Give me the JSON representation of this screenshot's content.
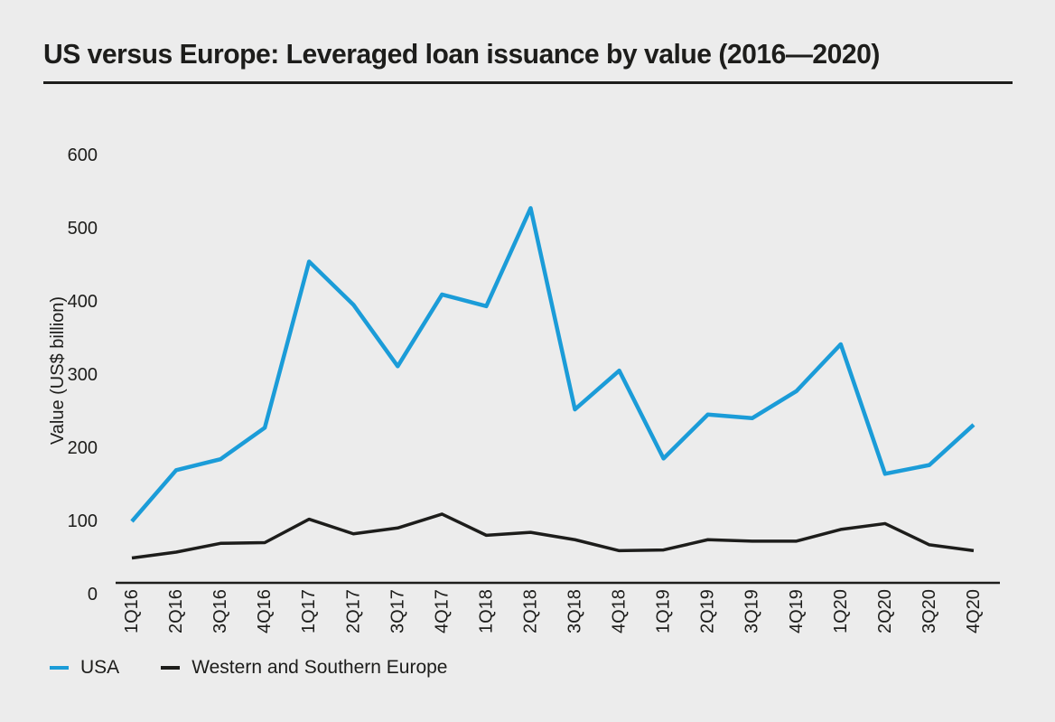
{
  "title": "US versus Europe: Leveraged loan issuance by value (2016—2020)",
  "colors": {
    "background": "#ececec",
    "ink": "#1d1d1b",
    "accent_blue": "#1b9cd8"
  },
  "chart_data": {
    "type": "line",
    "title": "US versus Europe: Leveraged loan issuance by value (2016—2020)",
    "xlabel": "",
    "ylabel": "Value (US$ billion)",
    "ylim": [
      0,
      600
    ],
    "yticks": [
      0,
      100,
      200,
      300,
      400,
      500,
      600
    ],
    "grid": false,
    "legend_position": "bottom-left",
    "categories": [
      "1Q16",
      "2Q16",
      "3Q16",
      "4Q16",
      "1Q17",
      "2Q17",
      "3Q17",
      "4Q17",
      "1Q18",
      "2Q18",
      "3Q18",
      "4Q18",
      "1Q19",
      "2Q19",
      "3Q19",
      "4Q19",
      "1Q20",
      "2Q20",
      "3Q20",
      "4Q20"
    ],
    "series": [
      {
        "name": "USA",
        "color": "#1b9cd8",
        "values": [
          100,
          170,
          185,
          228,
          455,
          396,
          312,
          410,
          394,
          528,
          253,
          306,
          186,
          246,
          241,
          278,
          342,
          165,
          177,
          232
        ]
      },
      {
        "name": "Western and Southern Europe",
        "color": "#1d1d1b",
        "values": [
          50,
          58,
          70,
          71,
          103,
          83,
          91,
          110,
          81,
          85,
          75,
          60,
          61,
          75,
          73,
          73,
          89,
          97,
          68,
          60
        ]
      }
    ]
  }
}
